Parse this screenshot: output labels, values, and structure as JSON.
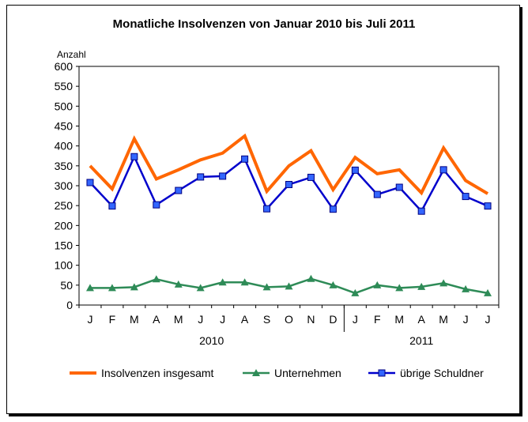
{
  "chart_data": {
    "type": "line",
    "title": "Monatliche Insolvenzen von Januar 2010 bis Juli 2011",
    "ylabel": "Anzahl",
    "xlabel": "",
    "ylim": [
      0,
      600
    ],
    "yticks": [
      0,
      50,
      100,
      150,
      200,
      250,
      300,
      350,
      400,
      450,
      500,
      550,
      600
    ],
    "categories": [
      "J",
      "F",
      "M",
      "A",
      "M",
      "J",
      "J",
      "A",
      "S",
      "O",
      "N",
      "D",
      "J",
      "F",
      "M",
      "A",
      "M",
      "J",
      "J"
    ],
    "year_groups": [
      {
        "label": "2010",
        "count": 12
      },
      {
        "label": "2011",
        "count": 7
      }
    ],
    "grid": false,
    "legend_position": "bottom",
    "series": [
      {
        "name": "Insolvenzen insgesamt",
        "color": "#ff6600",
        "marker": "none",
        "values": [
          350,
          292,
          418,
          317,
          340,
          365,
          382,
          425,
          286,
          350,
          388,
          290,
          371,
          330,
          340,
          282,
          395,
          313,
          280
        ]
      },
      {
        "name": "Unternehmen",
        "color": "#2e8b57",
        "marker": "triangle",
        "values": [
          43,
          43,
          45,
          65,
          52,
          43,
          57,
          57,
          45,
          47,
          66,
          50,
          30,
          50,
          43,
          46,
          55,
          40,
          30
        ]
      },
      {
        "name": "übrige Schuldner",
        "color": "#0000cc",
        "marker": "square",
        "values": [
          308,
          249,
          373,
          252,
          288,
          322,
          324,
          367,
          242,
          303,
          321,
          241,
          339,
          278,
          296,
          236,
          340,
          273,
          249
        ]
      }
    ]
  }
}
